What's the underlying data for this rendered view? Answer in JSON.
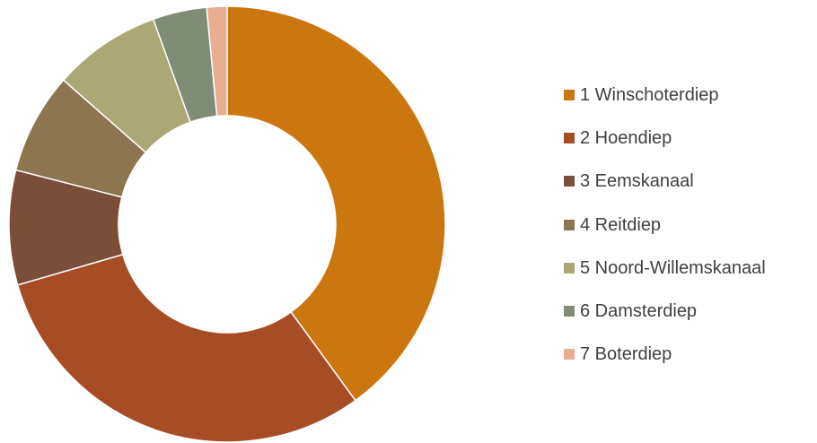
{
  "chart_data": {
    "type": "pie",
    "variant": "donut",
    "title": "",
    "legend_position": "right",
    "categories": [
      "1 Winschoterdiep",
      "2 Hoendiep",
      "3 Eemskanaal",
      "4 Reitdiep",
      "5 Noord-Willemskanaal",
      "6 Damsterdiep",
      "7 Boterdiep"
    ],
    "values": [
      40,
      30.5,
      8.5,
      7.5,
      8,
      4,
      1.5
    ],
    "colors": [
      "#CC7610",
      "#A74D25",
      "#7A4E38",
      "#8B7650",
      "#ACA875",
      "#7F8C76",
      "#E9AD8F"
    ]
  }
}
